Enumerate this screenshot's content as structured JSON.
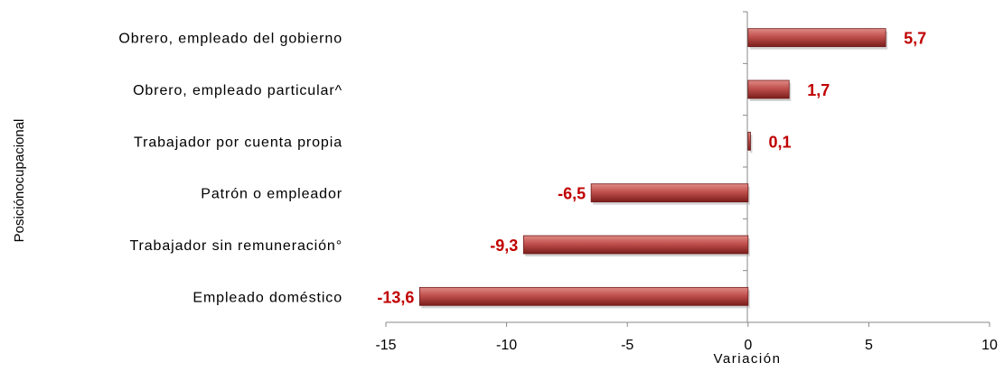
{
  "chart_data": {
    "type": "bar",
    "orientation": "horizontal",
    "categories": [
      "Obrero, empleado del gobierno",
      "Obrero, empleado particular^",
      "Trabajador por cuenta propia",
      "Patrón o empleador",
      "Trabajador sin remuneración°",
      "Empleado doméstico"
    ],
    "values": [
      5.7,
      1.7,
      0.1,
      -6.5,
      -9.3,
      -13.6
    ],
    "value_labels": [
      "5,7",
      "1,7",
      "0,1",
      "-6,5",
      "-9,3",
      "-13,6"
    ],
    "xlabel": "Variación",
    "ylabel": "Posiciónocupacional",
    "xlim": [
      -15,
      10
    ],
    "xticks": [
      -15,
      -10,
      -5,
      0,
      5,
      10
    ],
    "grid": false,
    "bar_color": "#c0504d",
    "bar_color_dark": "#7a1e1c",
    "label_color": "#c00000"
  }
}
